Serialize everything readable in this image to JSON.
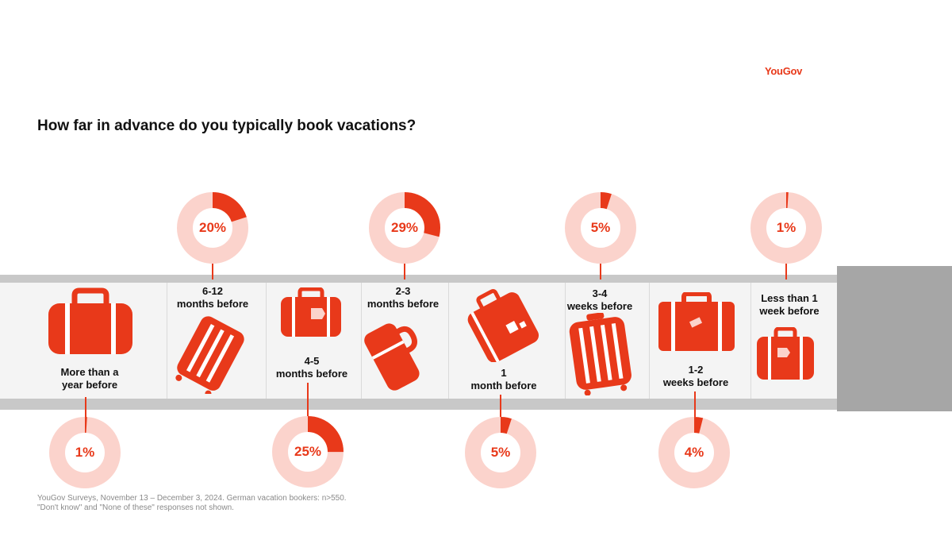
{
  "brand": "YouGov",
  "footnote": {
    "line1": "YouGov Surveys, November 13 – December 3, 2024. German vacation bookers: n>550.",
    "line2": "\"Don't know\" and \"None of these\" responses not shown."
  },
  "colors": {
    "accent": "#e8391a",
    "ring": "#fbd3cc",
    "belt": "#c8c8c8",
    "belt_surface": "#f4f4f4"
  },
  "chart_data": {
    "type": "pie",
    "title": "How far in advance do you typically book vacations?",
    "categories": [
      "More than a year before",
      "6-12 months before",
      "4-5 months before",
      "2-3 months before",
      "1 month before",
      "3-4 weeks before",
      "1-2 weeks before",
      "Less than 1 week before"
    ],
    "label_lines": [
      [
        "More than a",
        "year before"
      ],
      [
        "6-12",
        "months before"
      ],
      [
        "4-5",
        "months before"
      ],
      [
        "2-3",
        "months before"
      ],
      [
        "1",
        "month before"
      ],
      [
        "3-4",
        "weeks before"
      ],
      [
        "1-2",
        "weeks before"
      ],
      [
        "Less than 1",
        "week before"
      ]
    ],
    "values": [
      1,
      20,
      25,
      29,
      5,
      5,
      4,
      1
    ],
    "value_labels": [
      "1%",
      "20%",
      "25%",
      "29%",
      "5%",
      "5%",
      "4%",
      "1%"
    ],
    "unit": "%",
    "legend": "none",
    "icons": [
      "suitcase-icon",
      "rolling-suitcase-icon",
      "tagged-bag-icon",
      "duffel-bag-icon",
      "tagged-bag-icon",
      "rolling-suitcase-icon",
      "suitcase-icon",
      "tagged-bag-icon"
    ]
  }
}
